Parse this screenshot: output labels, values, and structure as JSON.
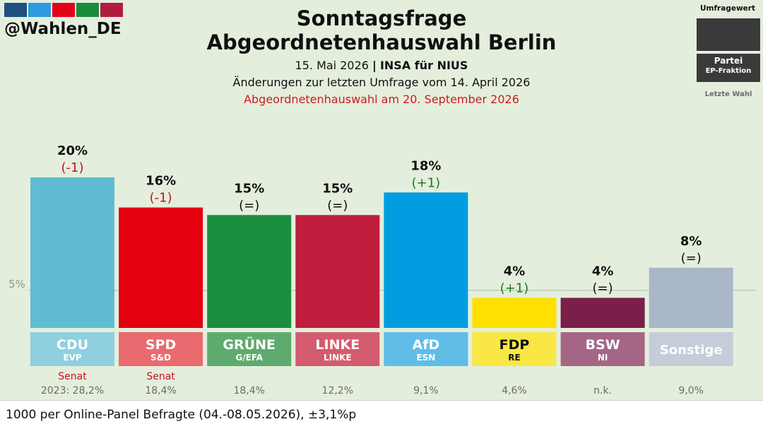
{
  "brand": {
    "handle": "@Wahlen_DE",
    "stripe_colors": [
      "#1e4f80",
      "#2d9be0",
      "#e2001a",
      "#1a8c3c",
      "#b31b3e"
    ]
  },
  "header": {
    "title_line1": "Sonntagsfrage",
    "title_line2": "Abgeordnetenhauswahl Berlin",
    "subtitle_date": "15. Mai 2026",
    "subtitle_separator": "|",
    "subtitle_source": "INSA für NIUS",
    "subtitle_changes": "Änderungen zur letzten Umfrage vom 14. April 2026",
    "subtitle_election": "Abgeordnetenhauswahl am 20. September 2026"
  },
  "legend": {
    "key_label": "Umfragewert",
    "party_label": "Partei",
    "faction_label": "EP-Fraktion",
    "last_label": "Letzte Wahl"
  },
  "chart_data": {
    "type": "bar",
    "categories": [
      "CDU",
      "SPD",
      "GRÜNE",
      "LINKE",
      "AfD",
      "FDP",
      "BSW",
      "Sonstige"
    ],
    "values": [
      20,
      16,
      15,
      15,
      18,
      4,
      4,
      8
    ],
    "value_labels": [
      "20%",
      "16%",
      "15%",
      "15%",
      "18%",
      "4%",
      "4%",
      "8%"
    ],
    "changes": [
      "(-1)",
      "(-1)",
      "(=)",
      "(=)",
      "(+1)",
      "(+1)",
      "(=)",
      "(=)"
    ],
    "factions": [
      "EVP",
      "S&D",
      "G/EFA",
      "LINKE",
      "ESN",
      "RE",
      "NI",
      ""
    ],
    "notes": [
      "Senat",
      "Senat",
      "",
      "",
      "",
      "",
      "",
      ""
    ],
    "last_election": [
      "2023: 28,2%",
      "18,4%",
      "18,4%",
      "12,2%",
      "9,1%",
      "4,6%",
      "n.k.",
      "9,0%"
    ],
    "bar_colors": [
      "#5fbcd3",
      "#e3000f",
      "#1b8e3e",
      "#be1e3c",
      "#009ee0",
      "#ffe000",
      "#7a1e4a",
      "#aab7c8"
    ],
    "label_colors": [
      "#8fcfdf",
      "#e96a6f",
      "#5faa6e",
      "#d55b6e",
      "#5fbde8",
      "#f8e744",
      "#a56685",
      "#c4cdd8"
    ],
    "threshold": {
      "value": 5,
      "label": "5%"
    },
    "ylim": [
      0,
      20
    ]
  },
  "footer": {
    "text": "1000 per Online-Panel Befragte (04.-08.05.2026), ±3,1%p"
  }
}
